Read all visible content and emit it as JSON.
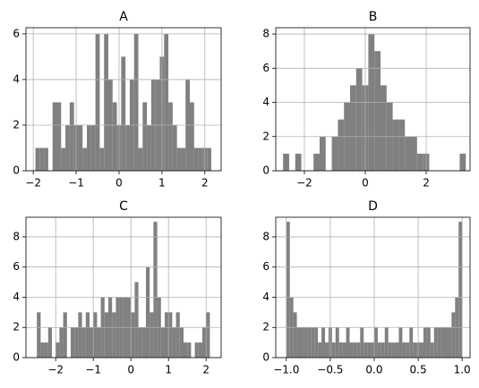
{
  "chart_data": [
    {
      "type": "histogram",
      "title": "A",
      "color": "#808080",
      "grid": true,
      "bins": [
        -1.95,
        -1.85,
        -1.75,
        -1.65,
        -1.55,
        -1.45,
        -1.35,
        -1.25,
        -1.15,
        -1.05,
        -0.95,
        -0.85,
        -0.75,
        -0.65,
        -0.55,
        -0.45,
        -0.35,
        -0.25,
        -0.15,
        -0.05,
        0.05,
        0.15,
        0.25,
        0.35,
        0.45,
        0.55,
        0.65,
        0.75,
        0.85,
        0.95,
        1.05,
        1.15,
        1.25,
        1.35,
        1.45,
        1.55,
        1.65,
        1.75,
        1.85,
        1.95,
        2.05,
        2.15
      ],
      "values": [
        1,
        1,
        1,
        0,
        3,
        3,
        1,
        2,
        3,
        2,
        2,
        1,
        2,
        2,
        6,
        1,
        6,
        4,
        3,
        2,
        5,
        2,
        4,
        6,
        1,
        3,
        2,
        4,
        4,
        5,
        6,
        3,
        2,
        1,
        1,
        4,
        3,
        1,
        1,
        1,
        1
      ],
      "xlim": [
        -2.17,
        2.38
      ],
      "ylim": [
        0,
        6.27
      ],
      "xticks": [
        {
          "value": -2,
          "label": "−2"
        },
        {
          "value": -1,
          "label": "−1"
        },
        0,
        1,
        2
      ],
      "yticks": [
        0,
        2,
        4,
        6
      ]
    },
    {
      "type": "histogram",
      "title": "B",
      "color": "#808080",
      "grid": true,
      "bins": [
        -2.7,
        -2.5,
        -2.3,
        -2.1,
        -1.9,
        -1.7,
        -1.5,
        -1.3,
        -1.1,
        -0.9,
        -0.7,
        -0.5,
        -0.3,
        -0.1,
        0.1,
        0.3,
        0.5,
        0.7,
        0.9,
        1.1,
        1.3,
        1.5,
        1.7,
        1.9,
        2.1,
        2.3,
        2.5,
        2.7,
        2.9,
        3.1,
        3.3
      ],
      "values": [
        1,
        0,
        1,
        0,
        0,
        1,
        2,
        0,
        2,
        3,
        4,
        5,
        6,
        5,
        8,
        7,
        5,
        4,
        3,
        3,
        2,
        2,
        1,
        1,
        0,
        0,
        0,
        0,
        0,
        1
      ],
      "xlim": [
        -2.94,
        3.44
      ],
      "ylim": [
        0,
        8.37
      ],
      "xticks": [
        {
          "value": -2,
          "label": "−2"
        },
        0,
        2
      ],
      "yticks": [
        0,
        2,
        4,
        6,
        8
      ]
    },
    {
      "type": "histogram",
      "title": "C",
      "color": "#808080",
      "grid": true,
      "bins": [
        -2.5,
        -2.4,
        -2.3,
        -2.2,
        -2.1,
        -2.0,
        -1.9,
        -1.8,
        -1.7,
        -1.6,
        -1.5,
        -1.4,
        -1.3,
        -1.2,
        -1.1,
        -1.0,
        -0.9,
        -0.8,
        -0.7,
        -0.6,
        -0.5,
        -0.4,
        -0.3,
        -0.2,
        -0.1,
        0.0,
        0.1,
        0.2,
        0.3,
        0.4,
        0.5,
        0.6,
        0.7,
        0.8,
        0.9,
        1.0,
        1.1,
        1.2,
        1.3,
        1.4,
        1.5,
        1.6,
        1.7,
        1.8,
        1.9,
        2.0,
        2.1
      ],
      "values": [
        3,
        1,
        1,
        2,
        0,
        1,
        2,
        3,
        0,
        2,
        2,
        3,
        2,
        3,
        2,
        3,
        2,
        4,
        3,
        4,
        3,
        4,
        4,
        4,
        4,
        3,
        5,
        2,
        2,
        6,
        3,
        9,
        4,
        2,
        3,
        3,
        2,
        3,
        2,
        1,
        1,
        0,
        1,
        1,
        2,
        3
      ],
      "xlim": [
        -2.79,
        2.4
      ],
      "ylim": [
        0,
        9.3
      ],
      "xticks": [
        {
          "value": -2,
          "label": "−2"
        },
        {
          "value": -1,
          "label": "−1"
        },
        0,
        1,
        2
      ],
      "yticks": [
        0,
        2,
        4,
        6,
        8
      ]
    },
    {
      "type": "histogram",
      "title": "D",
      "color": "#808080",
      "grid": true,
      "bins": [
        -1.0,
        -0.96,
        -0.92,
        -0.88,
        -0.84,
        -0.8,
        -0.76,
        -0.72,
        -0.68,
        -0.64,
        -0.6,
        -0.56,
        -0.52,
        -0.48,
        -0.44,
        -0.4,
        -0.36,
        -0.32,
        -0.28,
        -0.24,
        -0.2,
        -0.16,
        -0.12,
        -0.08,
        -0.04,
        0.0,
        0.04,
        0.08,
        0.12,
        0.16,
        0.2,
        0.24,
        0.28,
        0.32,
        0.36,
        0.4,
        0.44,
        0.48,
        0.52,
        0.56,
        0.6,
        0.64,
        0.68,
        0.72,
        0.76,
        0.8,
        0.84,
        0.88,
        0.92,
        0.96,
        1.0
      ],
      "values": [
        9,
        4,
        3,
        2,
        2,
        2,
        2,
        2,
        2,
        1,
        2,
        1,
        2,
        1,
        2,
        1,
        1,
        2,
        1,
        1,
        1,
        2,
        1,
        1,
        1,
        2,
        1,
        1,
        2,
        1,
        1,
        1,
        2,
        1,
        1,
        2,
        1,
        1,
        1,
        2,
        2,
        1,
        2,
        2,
        2,
        2,
        2,
        3,
        4,
        9
      ],
      "xlim": [
        -1.12,
        1.09
      ],
      "ylim": [
        0,
        9.3
      ],
      "xticks": [
        {
          "value": -1,
          "label": "−1.0"
        },
        {
          "value": -0.5,
          "label": "−0.5"
        },
        {
          "value": 0,
          "label": "0.0"
        },
        {
          "value": 0.5,
          "label": "0.5"
        },
        {
          "value": 1,
          "label": "1.0"
        }
      ],
      "yticks": [
        0,
        2,
        4,
        6,
        8
      ]
    }
  ]
}
